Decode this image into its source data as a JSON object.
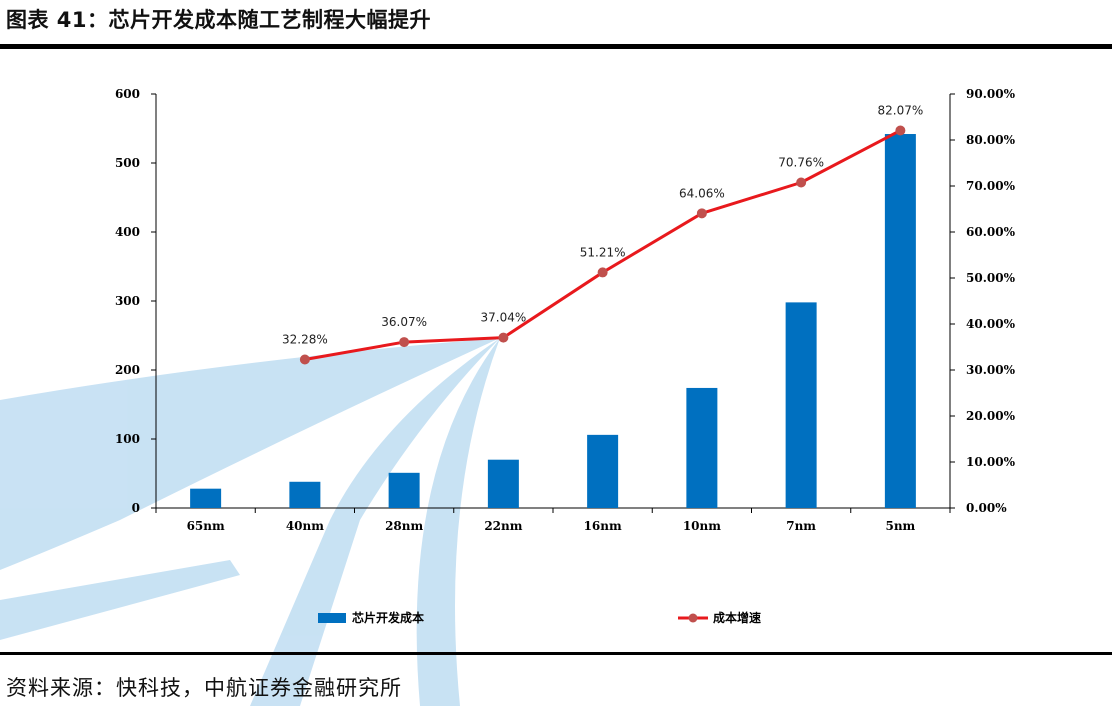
{
  "header": {
    "title": "图表 41：芯片开发成本随工艺制程大幅提升"
  },
  "footer": {
    "source": "资料来源：快科技，中航证券金融研究所"
  },
  "colors": {
    "bar": "#0070C0",
    "line": "#E8191D",
    "marker": "#C0504D",
    "watermark": "#BFDDF2"
  },
  "chart_data": {
    "type": "bar",
    "categories": [
      "65nm",
      "40nm",
      "28nm",
      "22nm",
      "16nm",
      "10nm",
      "7nm",
      "5nm"
    ],
    "series": [
      {
        "name": "芯片开发成本",
        "type": "bar",
        "axis": "left",
        "values": [
          28,
          38,
          51,
          70,
          106,
          174,
          298,
          542
        ]
      },
      {
        "name": "成本增速",
        "type": "line",
        "axis": "right",
        "values": [
          null,
          32.28,
          36.07,
          37.04,
          51.21,
          64.06,
          70.76,
          82.07
        ]
      }
    ],
    "data_labels": [
      "",
      "32.28%",
      "36.07%",
      "37.04%",
      "51.21%",
      "64.06%",
      "70.76%",
      "82.07%"
    ],
    "y_left": {
      "ylim": [
        0,
        600
      ],
      "ticks": [
        "0",
        "100",
        "200",
        "300",
        "400",
        "500",
        "600"
      ]
    },
    "y_right": {
      "ylim": [
        0,
        90
      ],
      "ticks": [
        "0.00%",
        "10.00%",
        "20.00%",
        "30.00%",
        "40.00%",
        "50.00%",
        "60.00%",
        "70.00%",
        "80.00%",
        "90.00%"
      ]
    },
    "legend": {
      "position": "bottom",
      "items": [
        "芯片开发成本",
        "成本增速"
      ]
    },
    "grid": false
  }
}
